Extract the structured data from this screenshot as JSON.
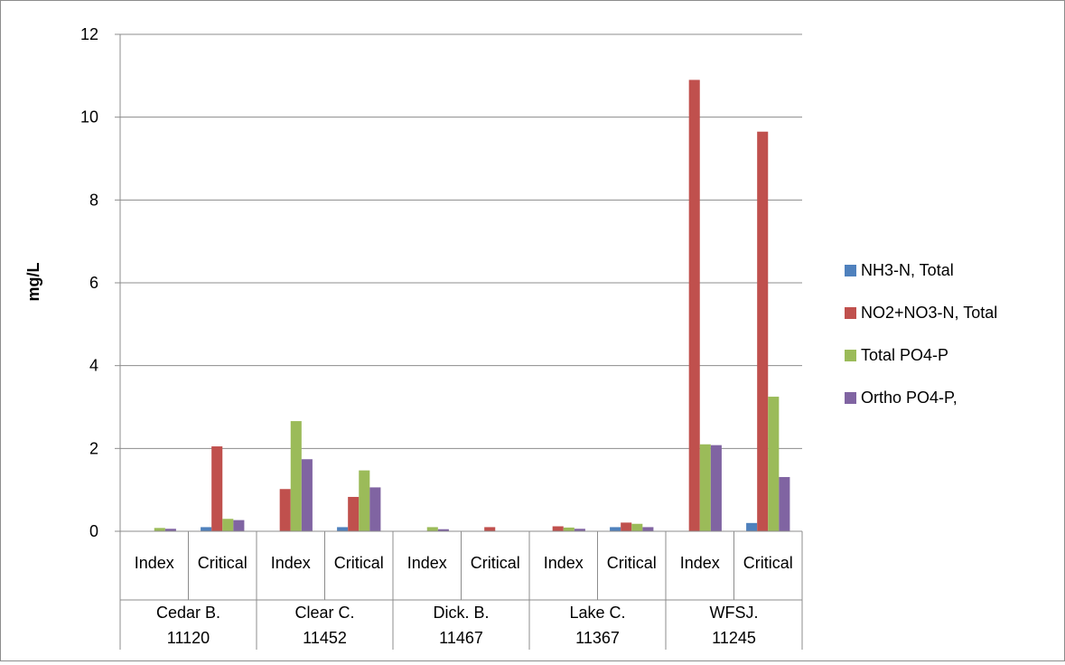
{
  "chart_data": {
    "type": "bar",
    "title": "",
    "ylabel": "mg/L",
    "xlabel": "",
    "ylim": [
      0,
      12
    ],
    "yticks": [
      0,
      2,
      4,
      6,
      8,
      10,
      12
    ],
    "grid": true,
    "legend_position": "right",
    "groups": [
      {
        "line1": "Cedar B.",
        "line2": "11120",
        "categories": [
          "Index",
          "Critical"
        ]
      },
      {
        "line1": "Clear C.",
        "line2": "11452",
        "categories": [
          "Index",
          "Critical"
        ]
      },
      {
        "line1": "Dick. B.",
        "line2": "11467",
        "categories": [
          "Index",
          "Critical"
        ]
      },
      {
        "line1": "Lake C.",
        "line2": "11367",
        "categories": [
          "Index",
          "Critical"
        ]
      },
      {
        "line1": "WFSJ.",
        "line2": "11245",
        "categories": [
          "Index",
          "Critical"
        ]
      }
    ],
    "series": [
      {
        "name": "NH3-N, Total",
        "color": "#4F81BD",
        "values": [
          0.0,
          0.1,
          0.0,
          0.1,
          0.0,
          0.0,
          0.0,
          0.1,
          0.0,
          0.2
        ]
      },
      {
        "name": "NO2+NO3-N, Total",
        "color": "#C0504D",
        "values": [
          0.0,
          2.05,
          1.02,
          0.83,
          0.0,
          0.1,
          0.12,
          0.21,
          10.9,
          9.65
        ]
      },
      {
        "name": "Total PO4-P",
        "color": "#9BBB59",
        "values": [
          0.08,
          0.3,
          2.66,
          1.47,
          0.1,
          0.0,
          0.09,
          0.18,
          2.1,
          3.25
        ]
      },
      {
        "name": "Ortho PO4-P,",
        "color": "#8064A2",
        "values": [
          0.06,
          0.27,
          1.74,
          1.06,
          0.05,
          0.0,
          0.06,
          0.1,
          2.08,
          1.31
        ]
      }
    ]
  }
}
